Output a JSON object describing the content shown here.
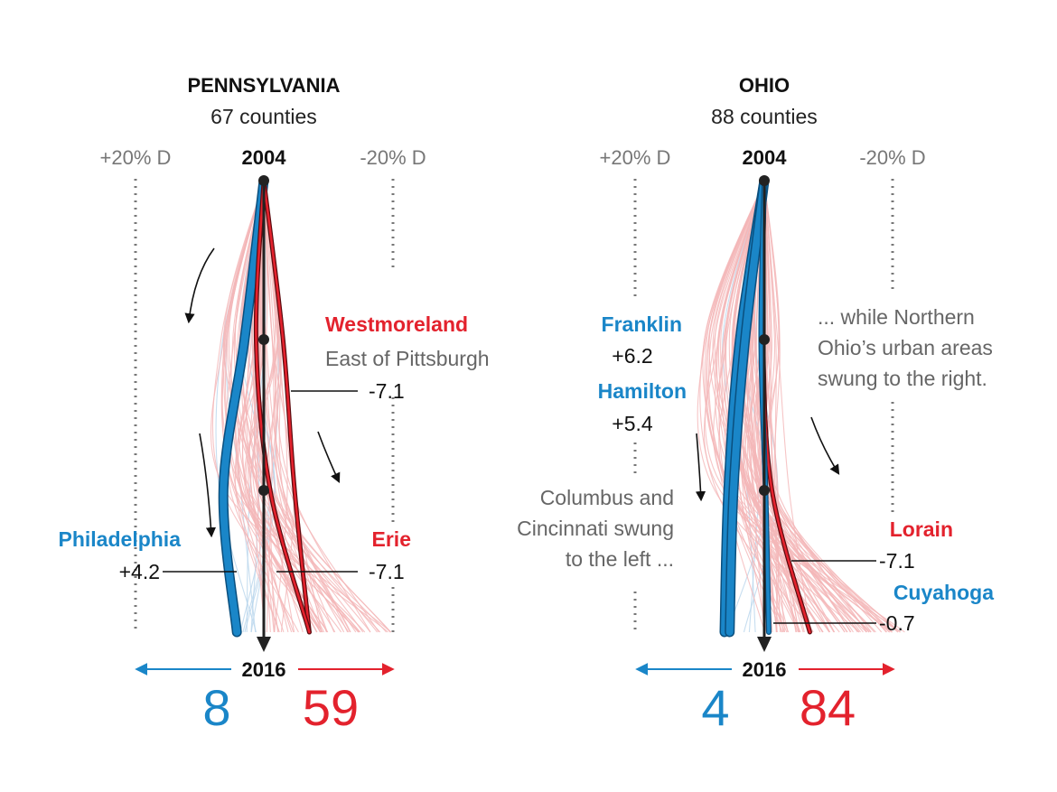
{
  "chart_data": [
    {
      "type": "line",
      "title": "PENNSYLVANIA",
      "subtitle": "67 counties",
      "x_axis": {
        "left_label": "+20% D",
        "right_label": "-20% D",
        "range": [
          20,
          -20
        ],
        "unit": "% D"
      },
      "y_axis": {
        "top_label": "2004",
        "bottom_label": "2016"
      },
      "totals": {
        "dem": "8",
        "rep": "59"
      },
      "highlighted": [
        {
          "name": "Philadelphia",
          "value_label": "+4.2",
          "party": "D",
          "values": [
            0,
            3,
            6.3,
            4.2
          ]
        },
        {
          "name": "Westmoreland",
          "note": "East of Pittsburgh",
          "value_label": "-7.1",
          "party": "R",
          "values": [
            0,
            -3,
            -4.8,
            -7.1
          ]
        },
        {
          "name": "Erie",
          "value_label": "-7.1",
          "party": "R",
          "values": [
            0,
            1.2,
            -1,
            -7.1
          ]
        }
      ],
      "background_series_count": 67
    },
    {
      "type": "line",
      "title": "OHIO",
      "subtitle": "88 counties",
      "x_axis": {
        "left_label": "+20% D",
        "right_label": "-20% D",
        "range": [
          20,
          -20
        ],
        "unit": "% D"
      },
      "y_axis": {
        "top_label": "2004",
        "bottom_label": "2016"
      },
      "totals": {
        "dem": "4",
        "rep": "84"
      },
      "highlighted": [
        {
          "name": "Franklin",
          "value_label": "+6.2",
          "party": "D",
          "values": [
            0,
            3.8,
            5.6,
            6.2
          ]
        },
        {
          "name": "Hamilton",
          "value_label": "+5.4",
          "party": "D",
          "values": [
            0,
            3,
            4.8,
            5.4
          ]
        },
        {
          "name": "Lorain",
          "value_label": "-7.1",
          "party": "R",
          "values": [
            0,
            0.2,
            -1.2,
            -7.1
          ]
        },
        {
          "name": "Cuyahoga",
          "value_label": "-0.7",
          "party": "D",
          "values": [
            0,
            0.5,
            -0.2,
            -0.7
          ]
        }
      ],
      "notes": [
        "Columbus and",
        "Cincinnati swung",
        "to the left ...",
        "... while Northern",
        "Ohio’s urban areas",
        "swung to the right."
      ],
      "background_series_count": 88
    }
  ],
  "colors": {
    "dem": "#1a86c8",
    "rep": "#e3222d",
    "dem_light": "#b9d6ec",
    "rep_light": "#f4b6b8",
    "axis": "#222222",
    "grid": "#777777"
  }
}
